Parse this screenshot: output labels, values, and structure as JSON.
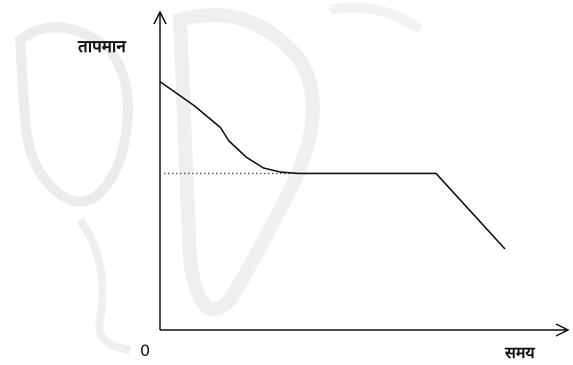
{
  "chart_data": {
    "type": "line",
    "xlabel": "समय",
    "ylabel": "तापमान",
    "origin_label": "0",
    "xlim": [
      0,
      10
    ],
    "ylim": [
      0,
      10
    ],
    "grid": false,
    "series": [
      {
        "x": [
          0,
          1.0,
          1.75,
          2.0,
          2.5,
          3.0,
          3.5,
          4.0,
          5.0,
          6.0,
          7.0,
          8.0,
          9.0,
          10.0
        ],
        "y": [
          9.2,
          8.3,
          7.5,
          7.0,
          6.4,
          6.0,
          5.85,
          5.8,
          5.8,
          5.8,
          5.8,
          5.8,
          4.4,
          3.0
        ]
      }
    ],
    "reference_lines": [
      {
        "style": "dotted",
        "y": 5.8,
        "x_from": 0,
        "x_to": 3.8
      }
    ]
  },
  "colors": {
    "axis": "#111111",
    "line": "#111111",
    "dotted": "#555555",
    "background": "#ffffff"
  }
}
